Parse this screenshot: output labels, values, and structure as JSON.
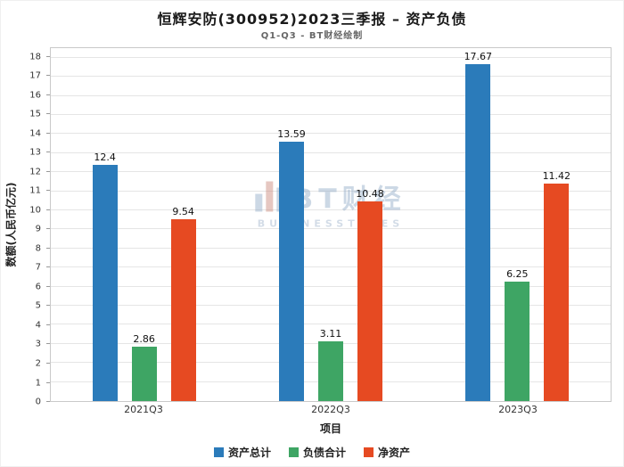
{
  "header": {
    "title": "恒辉安防(300952)2023三季报 – 资产负债",
    "subtitle": "Q1-Q3 - BT财经绘制"
  },
  "watermark": {
    "brand": "BT财经",
    "sub": "BUSINESSTIMES"
  },
  "chart_data": {
    "type": "bar",
    "title": "恒辉安防(300952)2023三季报 – 资产负债",
    "subtitle": "Q1-Q3 - BT财经绘制",
    "categories": [
      "2021Q3",
      "2022Q3",
      "2023Q3"
    ],
    "series": [
      {
        "name": "资产总计",
        "color": "#2b7bba",
        "values": [
          12.4,
          13.59,
          17.67
        ]
      },
      {
        "name": "负债合计",
        "color": "#3ea564",
        "values": [
          2.86,
          3.11,
          6.25
        ]
      },
      {
        "name": "净资产",
        "color": "#e64a22",
        "values": [
          9.54,
          10.48,
          11.42
        ]
      }
    ],
    "xlabel": "项目",
    "ylabel": "数额(人民币亿元)",
    "ylim": [
      0,
      18
    ],
    "ytick_step": 1,
    "grid": true,
    "legend_position": "bottom"
  }
}
